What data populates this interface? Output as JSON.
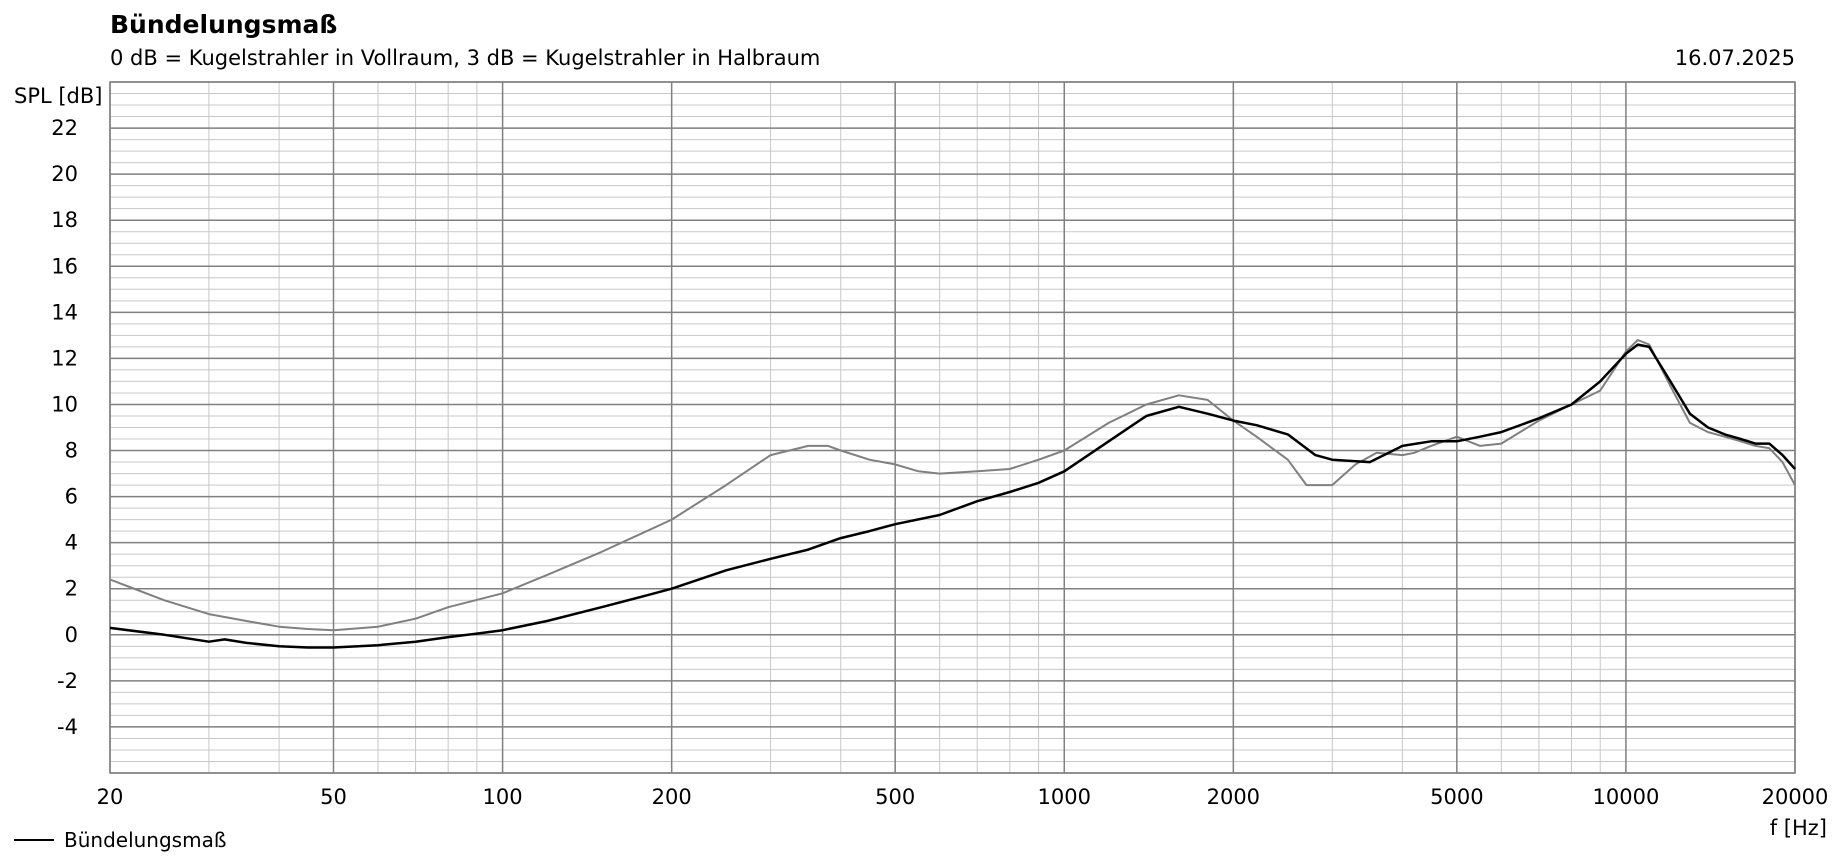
{
  "header": {
    "title": "Bündelungsmaß",
    "subtitle": "0 dB = Kugelstrahler in Vollraum, 3 dB = Kugelstrahler in Halbraum",
    "date": "16.07.2025"
  },
  "legend": {
    "label": "Bündelungsmaß"
  },
  "colors": {
    "series_main": "#000000",
    "series_secondary": "#808080",
    "grid_major": "#808080",
    "grid_minor": "#c8c8c8"
  },
  "chart_data": {
    "type": "line",
    "title": "Bündelungsmaß",
    "subtitle": "0 dB = Kugelstrahler in Vollraum, 3 dB = Kugelstrahler in Halbraum",
    "xlabel": "f [Hz]",
    "ylabel": "SPL [dB]",
    "xscale": "log",
    "xlim": [
      20,
      20000
    ],
    "ylim": [
      -6,
      24
    ],
    "xticks": [
      20,
      50,
      100,
      200,
      500,
      1000,
      2000,
      5000,
      10000,
      20000
    ],
    "xtick_labels": [
      "20",
      "50",
      "100",
      "200",
      "500",
      "1000",
      "2000",
      "5000",
      "10000",
      "20000"
    ],
    "yticks": [
      -4,
      -2,
      0,
      2,
      4,
      6,
      8,
      10,
      12,
      14,
      16,
      18,
      20,
      22
    ],
    "ytick_labels": [
      "-4",
      "-2",
      "0",
      "2",
      "4",
      "6",
      "8",
      "10",
      "12",
      "14",
      "16",
      "18",
      "20",
      "22"
    ],
    "grid": true,
    "legend_position": "bottom-left",
    "series": [
      {
        "name": "Bündelungsmaß",
        "color": "#000000",
        "x": [
          20,
          25,
          30,
          32,
          35,
          40,
          45,
          50,
          60,
          70,
          80,
          90,
          100,
          120,
          150,
          180,
          200,
          250,
          300,
          350,
          400,
          450,
          500,
          600,
          700,
          800,
          900,
          1000,
          1200,
          1400,
          1600,
          1800,
          2000,
          2200,
          2500,
          2800,
          3000,
          3500,
          4000,
          4500,
          5000,
          5500,
          6000,
          7000,
          8000,
          9000,
          10000,
          10500,
          11000,
          12000,
          13000,
          14000,
          15000,
          16000,
          17000,
          18000,
          19000,
          20000
        ],
        "y": [
          0.3,
          0.0,
          -0.3,
          -0.2,
          -0.35,
          -0.5,
          -0.55,
          -0.55,
          -0.45,
          -0.3,
          -0.1,
          0.05,
          0.2,
          0.6,
          1.2,
          1.7,
          2.0,
          2.8,
          3.3,
          3.7,
          4.2,
          4.5,
          4.8,
          5.2,
          5.8,
          6.2,
          6.6,
          7.1,
          8.4,
          9.5,
          9.9,
          9.6,
          9.3,
          9.1,
          8.7,
          7.8,
          7.6,
          7.5,
          8.2,
          8.4,
          8.4,
          8.6,
          8.8,
          9.4,
          10.0,
          11.0,
          12.2,
          12.6,
          12.5,
          11.0,
          9.6,
          9.0,
          8.7,
          8.5,
          8.3,
          8.3,
          7.8,
          7.2
        ]
      },
      {
        "color": "#808080",
        "x": [
          20,
          25,
          30,
          35,
          40,
          45,
          50,
          60,
          70,
          80,
          100,
          120,
          150,
          200,
          250,
          300,
          350,
          380,
          400,
          450,
          500,
          550,
          600,
          700,
          800,
          900,
          1000,
          1200,
          1400,
          1600,
          1800,
          2000,
          2200,
          2500,
          2700,
          2900,
          3000,
          3300,
          3600,
          4000,
          4200,
          4500,
          5000,
          5500,
          6000,
          7000,
          8000,
          9000,
          10000,
          10500,
          11000,
          12000,
          13000,
          14000,
          15000,
          16000,
          17000,
          18000,
          19000,
          20000
        ],
        "y": [
          2.4,
          1.5,
          0.9,
          0.6,
          0.35,
          0.25,
          0.2,
          0.35,
          0.7,
          1.2,
          1.8,
          2.6,
          3.6,
          5.0,
          6.5,
          7.8,
          8.2,
          8.2,
          8.0,
          7.6,
          7.4,
          7.1,
          7.0,
          7.1,
          7.2,
          7.6,
          8.0,
          9.2,
          10.0,
          10.4,
          10.2,
          9.3,
          8.6,
          7.6,
          6.5,
          6.5,
          6.5,
          7.4,
          7.9,
          7.8,
          7.9,
          8.2,
          8.6,
          8.2,
          8.3,
          9.3,
          10.0,
          10.6,
          12.3,
          12.8,
          12.6,
          10.8,
          9.2,
          8.8,
          8.6,
          8.4,
          8.2,
          8.1,
          7.5,
          6.5
        ]
      }
    ]
  }
}
